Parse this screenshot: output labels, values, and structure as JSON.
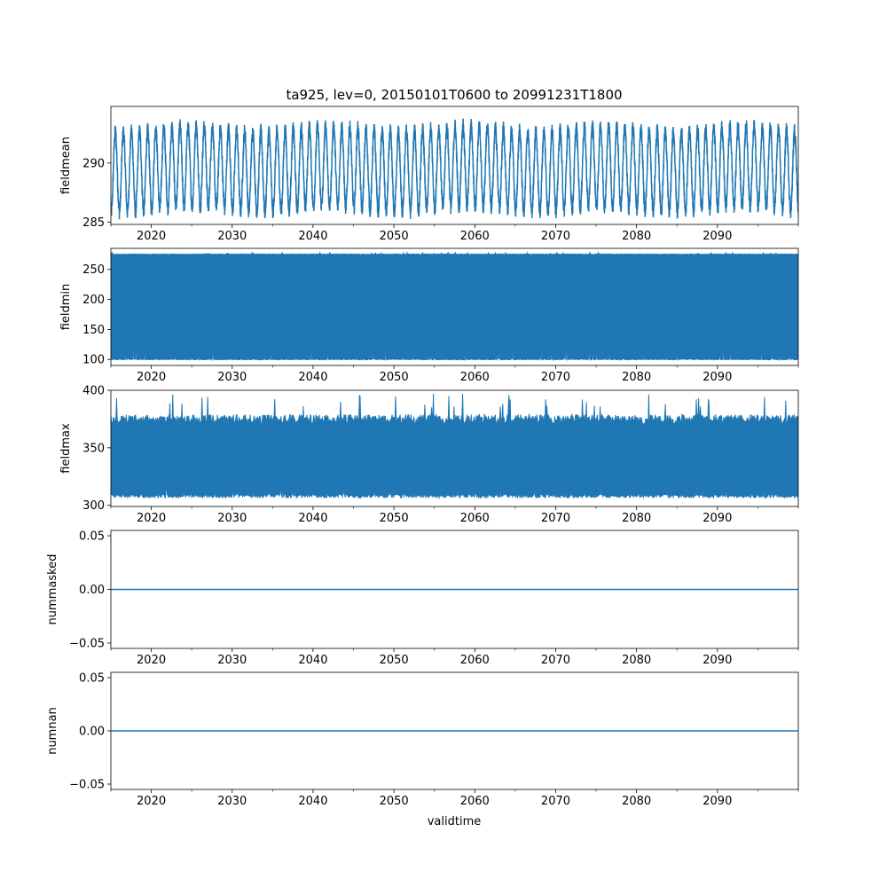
{
  "title": "ta925, lev=0, 20150101T0600 to 20991231T1800",
  "xlabel": "validtime",
  "xlim": [
    2015.0,
    2100.0
  ],
  "x_ticks": [
    2020,
    2030,
    2040,
    2050,
    2060,
    2070,
    2080,
    2090
  ],
  "x_tick_labels": [
    "2020",
    "2030",
    "2040",
    "2050",
    "2060",
    "2070",
    "2080",
    "2090"
  ],
  "x_minor_ticks": [
    2015,
    2025,
    2035,
    2045,
    2055,
    2065,
    2075,
    2085,
    2095,
    2100
  ],
  "series_color": "#1f77b4",
  "chart_data": [
    {
      "type": "line",
      "ylabel": "fieldmean",
      "ylim": [
        284.8,
        294.8
      ],
      "y_ticks": [
        285,
        290
      ],
      "y_tick_labels": [
        "285",
        "290"
      ],
      "series": [
        {
          "mean": 289.5,
          "amplitude": 3.4,
          "cycles_per_year": 1,
          "min": 285.3,
          "max": 294.5
        }
      ]
    },
    {
      "type": "area",
      "ylabel": "fieldmin",
      "ylim": [
        90,
        285
      ],
      "y_ticks": [
        100,
        150,
        200,
        250
      ],
      "y_tick_labels": [
        "100",
        "150",
        "200",
        "250"
      ],
      "series": [
        {
          "lower": 100,
          "upper": 275,
          "min": 98,
          "max": 278
        }
      ]
    },
    {
      "type": "area",
      "ylabel": "fieldmax",
      "ylim": [
        299,
        400
      ],
      "y_ticks": [
        300,
        350,
        400
      ],
      "y_tick_labels": [
        "300",
        "350",
        "400"
      ],
      "series": [
        {
          "lower": 308,
          "upper": 373,
          "min": 304,
          "max": 397
        }
      ]
    },
    {
      "type": "line",
      "ylabel": "nummasked",
      "ylim": [
        -0.055,
        0.055
      ],
      "y_ticks": [
        -0.05,
        0,
        0.05
      ],
      "y_tick_labels": [
        "−0.05",
        "0.00",
        "0.05"
      ],
      "series": [
        {
          "x": [
            2015.0,
            2100.0
          ],
          "y": [
            0.0,
            0.0
          ]
        }
      ]
    },
    {
      "type": "line",
      "ylabel": "numnan",
      "ylim": [
        -0.055,
        0.055
      ],
      "y_ticks": [
        -0.05,
        0,
        0.05
      ],
      "y_tick_labels": [
        "−0.05",
        "0.00",
        "0.05"
      ],
      "series": [
        {
          "x": [
            2015.0,
            2100.0
          ],
          "y": [
            0.0,
            0.0
          ]
        }
      ]
    }
  ]
}
